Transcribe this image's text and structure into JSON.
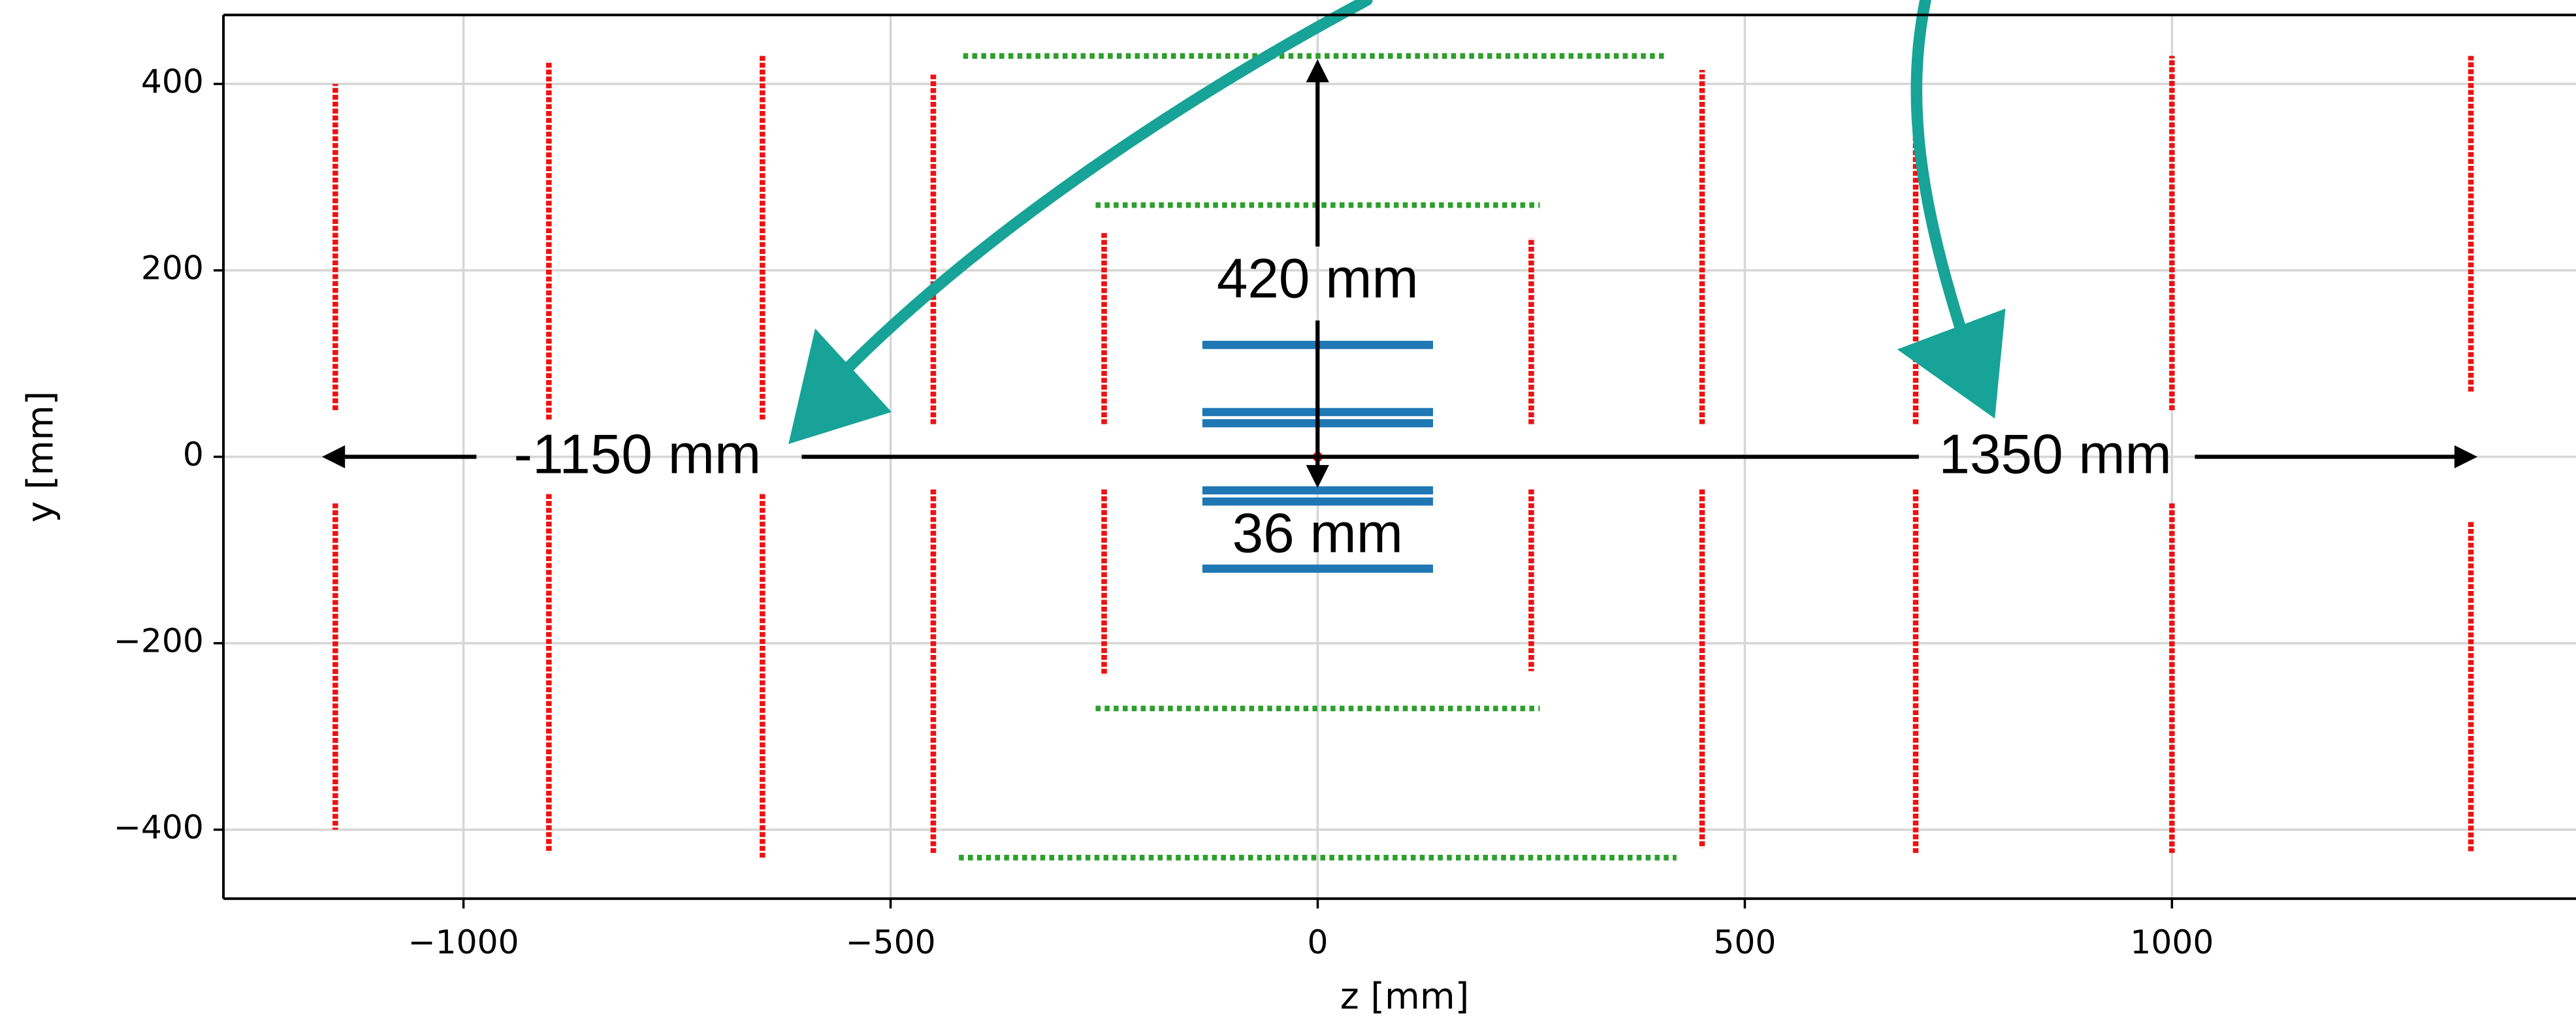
{
  "chart_data": {
    "type": "scatter",
    "xlabel": "z [mm]",
    "ylabel": "y [mm]",
    "xlim": [
      -1281,
      1473
    ],
    "ylim": [
      -474,
      474
    ],
    "xticks": [
      {
        "value": -1000,
        "label": "−1000"
      },
      {
        "value": -500,
        "label": "−500"
      },
      0,
      500,
      1000
    ],
    "yticks": [
      {
        "value": -400,
        "label": "−400"
      },
      {
        "value": -200,
        "label": "−200"
      },
      0,
      200,
      400
    ],
    "grid": true,
    "series": [
      {
        "color": "#ee1111",
        "orientation": "vertical",
        "x": [
          -1150,
          -900,
          -650,
          -450,
          -250,
          250,
          450,
          700,
          1000,
          1350,
          -1150,
          -900,
          -650,
          -450,
          -250,
          250,
          450,
          700,
          1000,
          1350
        ],
        "from": [
          50,
          40,
          40,
          35,
          35,
          35,
          35,
          35,
          50,
          70,
          -50,
          -40,
          -40,
          -35,
          -35,
          -35,
          -35,
          -35,
          -50,
          -70
        ],
        "to": [
          400,
          425,
          430,
          410,
          240,
          235,
          415,
          420,
          430,
          430,
          -400,
          -425,
          -430,
          -425,
          -235,
          -230,
          -420,
          -425,
          -425,
          -425
        ]
      },
      {
        "color": "#2ca02c",
        "orientation": "horizontal",
        "y": [
          270,
          -270,
          430,
          -430
        ],
        "from": [
          -260,
          -260,
          -415,
          -420
        ],
        "to": [
          260,
          260,
          410,
          420
        ]
      },
      {
        "color": "#1f77b4",
        "orientation": "horizontal",
        "y": [
          120,
          48,
          36,
          -36,
          -48,
          -120
        ],
        "from": [
          -135,
          -135,
          -135,
          -135,
          -135,
          -135
        ],
        "to": [
          135,
          135,
          135,
          135,
          135,
          135
        ]
      },
      {
        "color": "#ee1111",
        "orientation": "point",
        "x": [
          0
        ],
        "y": [
          0
        ]
      }
    ],
    "annotations": [
      "420 mm",
      "36 mm",
      "-1150 mm",
      "1350 mm"
    ]
  }
}
